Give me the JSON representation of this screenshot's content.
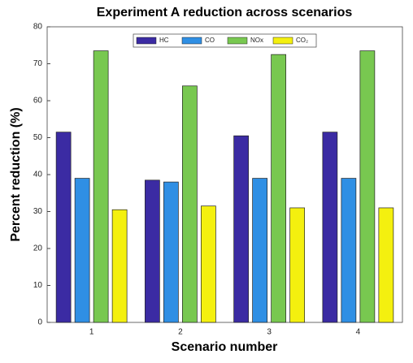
{
  "chart_data": {
    "type": "bar",
    "title": "Experiment A reduction across scenarios",
    "x_label": "Scenario number",
    "y_label": "Percent reduction (%)",
    "categories": [
      "1",
      "2",
      "3",
      "4"
    ],
    "series": [
      {
        "name": "HC",
        "color": "#3b2ba3",
        "values": [
          51.5,
          38.5,
          50.5,
          51.5
        ]
      },
      {
        "name": "CO",
        "color": "#2f8fe4",
        "values": [
          39,
          38,
          39,
          39
        ]
      },
      {
        "name": "NOx",
        "color": "#78c850",
        "values": [
          73.5,
          64,
          72.5,
          73.5
        ]
      },
      {
        "name": "CO₂",
        "color": "#f4f00f",
        "values": [
          30.5,
          31.5,
          31,
          31
        ]
      }
    ],
    "ylim": [
      0,
      80
    ],
    "yticks": [
      0,
      10,
      20,
      30,
      40,
      50,
      60,
      70,
      80
    ],
    "grid": false,
    "legend": "top"
  }
}
